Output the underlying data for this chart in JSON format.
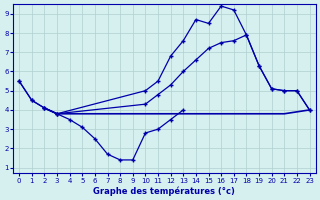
{
  "title": "Graphe des températures (°c)",
  "xlim": [
    -0.5,
    23.5
  ],
  "ylim": [
    0.7,
    9.5
  ],
  "xticks": [
    0,
    1,
    2,
    3,
    4,
    5,
    6,
    7,
    8,
    9,
    10,
    11,
    12,
    13,
    14,
    15,
    16,
    17,
    18,
    19,
    20,
    21,
    22,
    23
  ],
  "yticks": [
    1,
    2,
    3,
    4,
    5,
    6,
    7,
    8,
    9
  ],
  "bg_color": "#d6f0f0",
  "line_color": "#0000aa",
  "grid_color": "#b0d0d0",
  "line_flat_x": [
    2,
    3,
    4,
    5,
    6,
    7,
    8,
    9,
    10,
    11,
    12,
    13,
    14,
    15,
    16,
    17,
    18,
    19,
    20,
    21,
    22,
    23
  ],
  "line_flat_y": [
    4.1,
    3.8,
    3.8,
    3.8,
    3.8,
    3.8,
    3.8,
    3.8,
    3.8,
    3.8,
    3.8,
    3.8,
    3.8,
    3.8,
    3.8,
    3.8,
    3.8,
    3.8,
    3.8,
    3.8,
    3.9,
    4.0
  ],
  "line_rise_x": [
    0,
    1,
    2,
    3,
    10,
    11,
    12,
    13,
    14,
    15,
    16,
    17,
    18,
    19,
    20,
    21,
    22,
    23
  ],
  "line_rise_y": [
    5.5,
    4.5,
    4.1,
    3.8,
    4.3,
    4.8,
    5.3,
    6.0,
    6.6,
    7.2,
    7.5,
    7.6,
    7.9,
    6.3,
    5.1,
    5.0,
    5.0,
    4.0
  ],
  "line_peak_x": [
    0,
    1,
    2,
    3,
    10,
    11,
    12,
    13,
    14,
    15,
    16,
    17,
    18,
    19,
    20,
    21,
    22,
    23
  ],
  "line_peak_y": [
    5.5,
    4.5,
    4.1,
    3.8,
    5.0,
    5.5,
    6.8,
    7.6,
    8.7,
    8.5,
    9.4,
    9.2,
    7.9,
    6.3,
    5.1,
    5.0,
    5.0,
    4.0
  ],
  "line_dip_x": [
    2,
    3,
    4,
    5,
    6,
    7,
    8,
    9,
    10,
    11,
    12,
    13
  ],
  "line_dip_y": [
    4.1,
    3.8,
    3.5,
    3.1,
    2.5,
    1.7,
    1.4,
    1.4,
    2.8,
    3.0,
    3.5,
    4.0
  ]
}
